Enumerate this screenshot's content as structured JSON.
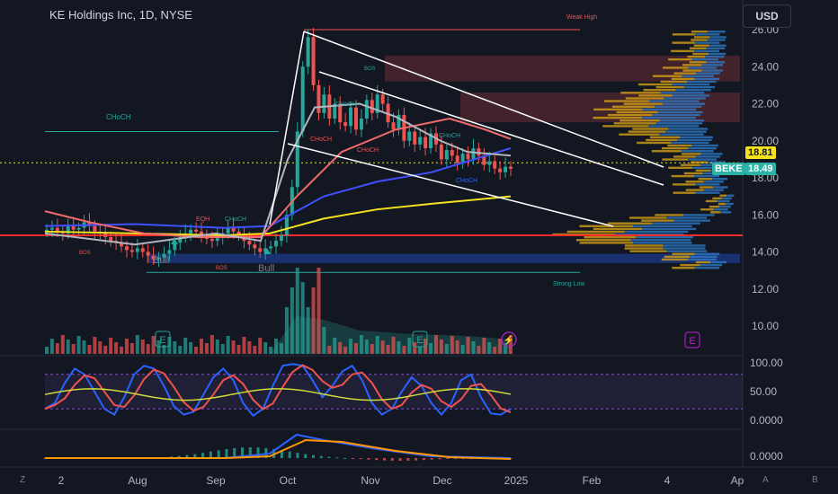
{
  "header": {
    "title": "KE Holdings Inc, 1D, NYSE",
    "currency": "USD"
  },
  "price_axis": {
    "labels": [
      "26.00",
      "24.00",
      "22.00",
      "20.00",
      "18.00",
      "16.00",
      "14.00",
      "12.00",
      "10.00"
    ]
  },
  "last_price_tag": "18.81",
  "symbol_tag": {
    "symbol": "BEKE",
    "price": "18.49"
  },
  "osc_axis": {
    "labels": [
      "100.00",
      "50.00",
      "0.0000"
    ]
  },
  "macd_axis": {
    "labels": [
      "0.0000"
    ]
  },
  "time_axis": {
    "labels": [
      "2",
      "Aug",
      "Sep",
      "Oct",
      "Nov",
      "Dec",
      "2025",
      "Feb",
      "4",
      "Ap"
    ]
  },
  "annotations": {
    "weak_high": "Weak High",
    "strong_low": "Strong Low",
    "choch": "CHoCH",
    "bos": "BOS",
    "eqh": "EQH",
    "bull": "Bull"
  },
  "event_markers": [
    "E",
    "E",
    "E"
  ],
  "corner_left": "Z",
  "corner_right": [
    "A",
    "B"
  ],
  "colors": {
    "bg": "#131722",
    "up": "#26a69a",
    "down": "#ef5350",
    "yellow": "#f5e21d",
    "teal": "#2db3a6",
    "blue": "#2962ff"
  },
  "chart_data": {
    "type": "candlestick",
    "title": "KE Holdings Inc, 1D, NYSE",
    "ylim": [
      12,
      26
    ],
    "last": 18.49,
    "dotted_level": 18.81,
    "red_level": 14.9,
    "close_series": [
      15.2,
      15.3,
      15.1,
      15.0,
      15.4,
      15.2,
      15.3,
      15.6,
      15.4,
      15.1,
      15.0,
      14.8,
      14.6,
      14.5,
      14.3,
      14.1,
      14.0,
      14.2,
      14.0,
      13.8,
      13.6,
      13.7,
      13.9,
      14.1,
      14.5,
      14.8,
      15.0,
      15.2,
      15.1,
      14.9,
      14.7,
      14.6,
      14.8,
      15.0,
      15.3,
      15.1,
      14.9,
      14.6,
      14.4,
      14.2,
      14.0,
      14.2,
      14.3,
      14.6,
      14.9,
      16.0,
      17.5,
      20.5,
      24.0,
      25.6,
      23.0,
      21.5,
      22.5,
      21.2,
      22.0,
      21.0,
      20.8,
      21.8,
      20.6,
      21.2,
      22.2,
      21.5,
      22.5,
      22.0,
      21.0,
      20.6,
      21.4,
      20.0,
      20.5,
      19.8,
      20.2,
      19.6,
      20.4,
      19.8,
      19.0,
      19.5,
      19.2,
      18.8,
      19.3,
      19.0,
      19.6,
      19.2,
      18.7,
      18.9,
      18.5,
      18.3,
      18.6,
      18.49
    ]
  }
}
